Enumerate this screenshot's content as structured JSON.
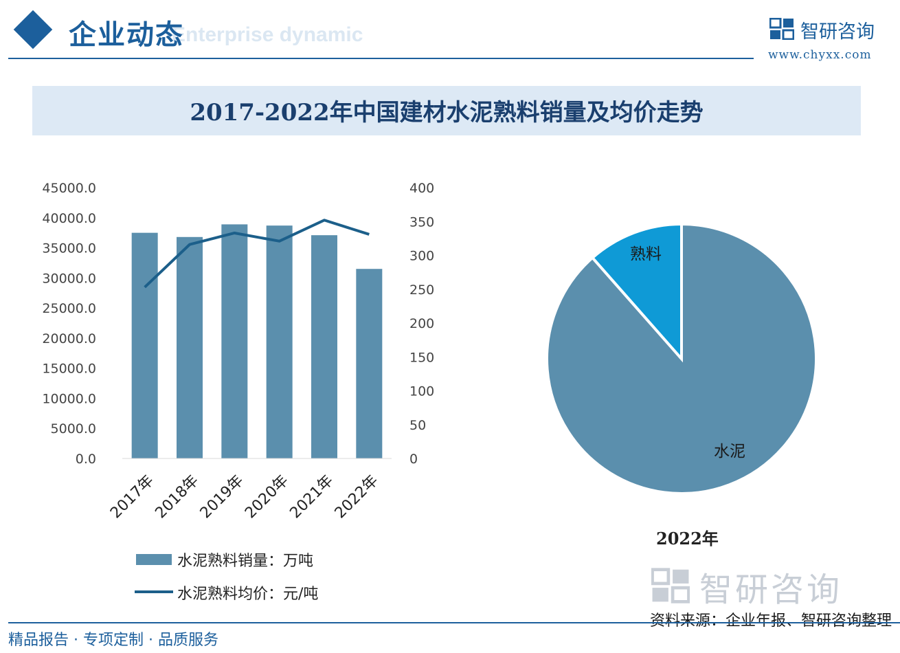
{
  "header": {
    "title": "企业动态",
    "subtitle_en": "Enterprise dynamic",
    "brand_name": "智研咨询",
    "brand_url": "www.chyxx.com"
  },
  "colors": {
    "primary": "#1c5f9c",
    "bar": "#5b8fad",
    "line": "#1c5f8a",
    "pie_cement": "#5b8fad",
    "pie_clinker": "#0f9ad6"
  },
  "icons": [
    "brand-logo-icon",
    "diamond-icon"
  ],
  "chart_data": [
    {
      "type": "bar",
      "title": "2017-2022年中国建材水泥熟料销量及均价走势",
      "categories": [
        "2017年",
        "2018年",
        "2019年",
        "2020年",
        "2021年",
        "2022年"
      ],
      "series": [
        {
          "name": "水泥熟料销量：万吨",
          "type": "bar",
          "axis": "left",
          "values": [
            37500,
            36800,
            38900,
            38700,
            37100,
            31500
          ]
        },
        {
          "name": "水泥熟料均价：元/吨",
          "type": "line",
          "axis": "right",
          "values": [
            253,
            316,
            333,
            321,
            352,
            331
          ]
        }
      ],
      "y_left_ticks": [
        "0.0",
        "5000.0",
        "10000.0",
        "15000.0",
        "20000.0",
        "25000.0",
        "30000.0",
        "35000.0",
        "40000.0",
        "45000.0"
      ],
      "y_left_lim": [
        0,
        45000
      ],
      "y_right_ticks": [
        "0",
        "50",
        "100",
        "150",
        "200",
        "250",
        "300",
        "350",
        "400"
      ],
      "y_right_lim": [
        0,
        400
      ],
      "legend_position": "bottom",
      "grid": false
    },
    {
      "type": "pie",
      "title": "2022年",
      "slices": [
        {
          "label": "水泥",
          "value": 88.5
        },
        {
          "label": "熟料",
          "value": 11.5
        }
      ]
    }
  ],
  "footer": {
    "left": "精品报告 · 专项定制 · 品质服务",
    "source": "资料来源：企业年报、智研咨询整理",
    "watermark": "智研咨询"
  }
}
